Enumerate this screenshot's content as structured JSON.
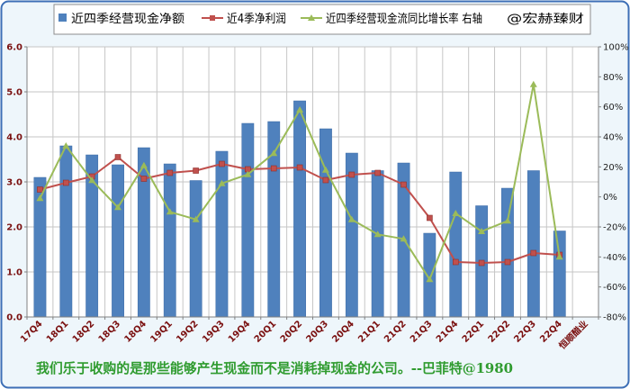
{
  "chart_data": {
    "type": "bar",
    "legend_position": "top",
    "grid": true,
    "categories": [
      "17Q4",
      "18Q1",
      "18Q2",
      "18Q3",
      "18Q4",
      "19Q1",
      "19Q2",
      "19Q3",
      "19Q4",
      "20Q1",
      "20Q2",
      "20Q3",
      "20Q4",
      "21Q1",
      "21Q2",
      "21Q3",
      "21Q4",
      "22Q1",
      "22Q2",
      "22Q3",
      "22Q4",
      "恒顺醋业"
    ],
    "series": [
      {
        "name": "近四季经营现金净额",
        "type": "bar",
        "axis": "left",
        "values": [
          3.1,
          3.8,
          3.6,
          3.38,
          3.76,
          3.4,
          3.03,
          3.68,
          4.3,
          4.34,
          4.8,
          4.18,
          3.64,
          3.25,
          3.42,
          1.86,
          3.22,
          2.47,
          2.86,
          3.25,
          1.91,
          null
        ]
      },
      {
        "name": "近4季净利润",
        "type": "line",
        "axis": "left",
        "marker": "square",
        "values": [
          2.83,
          2.98,
          3.12,
          3.55,
          3.07,
          3.2,
          3.25,
          3.4,
          3.28,
          3.3,
          3.32,
          3.04,
          3.16,
          3.2,
          2.94,
          2.2,
          1.22,
          1.2,
          1.22,
          1.42,
          1.38,
          null
        ]
      },
      {
        "name": "近四季经营现金流同比增长率 右轴",
        "type": "line",
        "axis": "right",
        "marker": "triangle",
        "unit": "%",
        "values": [
          -1,
          34,
          11,
          -7,
          21,
          -10,
          -15,
          9,
          15,
          29,
          58,
          18,
          -15,
          -25,
          -28,
          -55,
          -11,
          -23,
          -16,
          75,
          -40,
          null
        ]
      }
    ],
    "y_left": {
      "min": 0,
      "max": 6,
      "tick_labels": [
        "6.0",
        "5.0",
        "4.0",
        "3.0",
        "2.0",
        "1.0",
        "0.0"
      ]
    },
    "y_right": {
      "min": -80,
      "max": 100,
      "tick_labels": [
        "100%",
        "80%",
        "60%",
        "40%",
        "20%",
        "0%",
        "-20%",
        "-40%",
        "-60%",
        "-80%"
      ]
    },
    "annotation": "@宏赫臻财",
    "caption": "我们乐于收购的是那些能够产生现金而不是消耗掉现金的公司。--巴菲特@1980"
  },
  "colors": {
    "bar": "#4f81bd",
    "net_profit": "#c0504d",
    "growth_rate": "#9bbb59",
    "caption": "#2f9b2f",
    "frame": "#3d6fb6",
    "frame_fill": "#eef6fb"
  }
}
